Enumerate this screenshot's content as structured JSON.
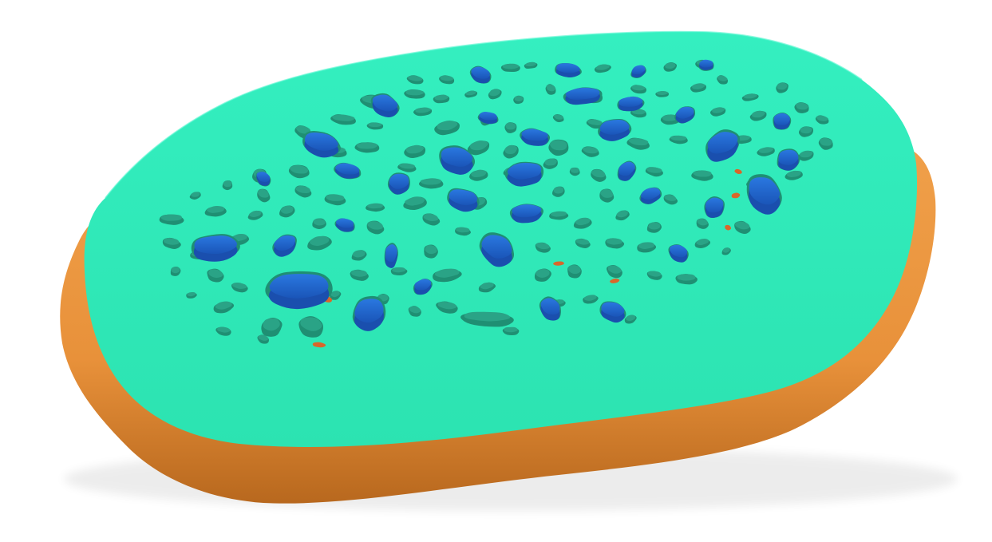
{
  "scene": {
    "description_label": "",
    "colors": {
      "background": "#ffffff",
      "base_layer": "#e8913a",
      "base_layer_dark": "#c86f20",
      "top_layer": "#2ee8b6",
      "top_layer_edge": "#27d3a4",
      "hole_shadow": "#1f8f73",
      "hole_inner": "#2aa386",
      "blue_insert": "#1e62cc",
      "blue_insert_top": "#2470da",
      "orange_peek": "#d9662a"
    },
    "layers": [
      "base-layer",
      "top-layer",
      "holes",
      "blue-inserts"
    ]
  }
}
